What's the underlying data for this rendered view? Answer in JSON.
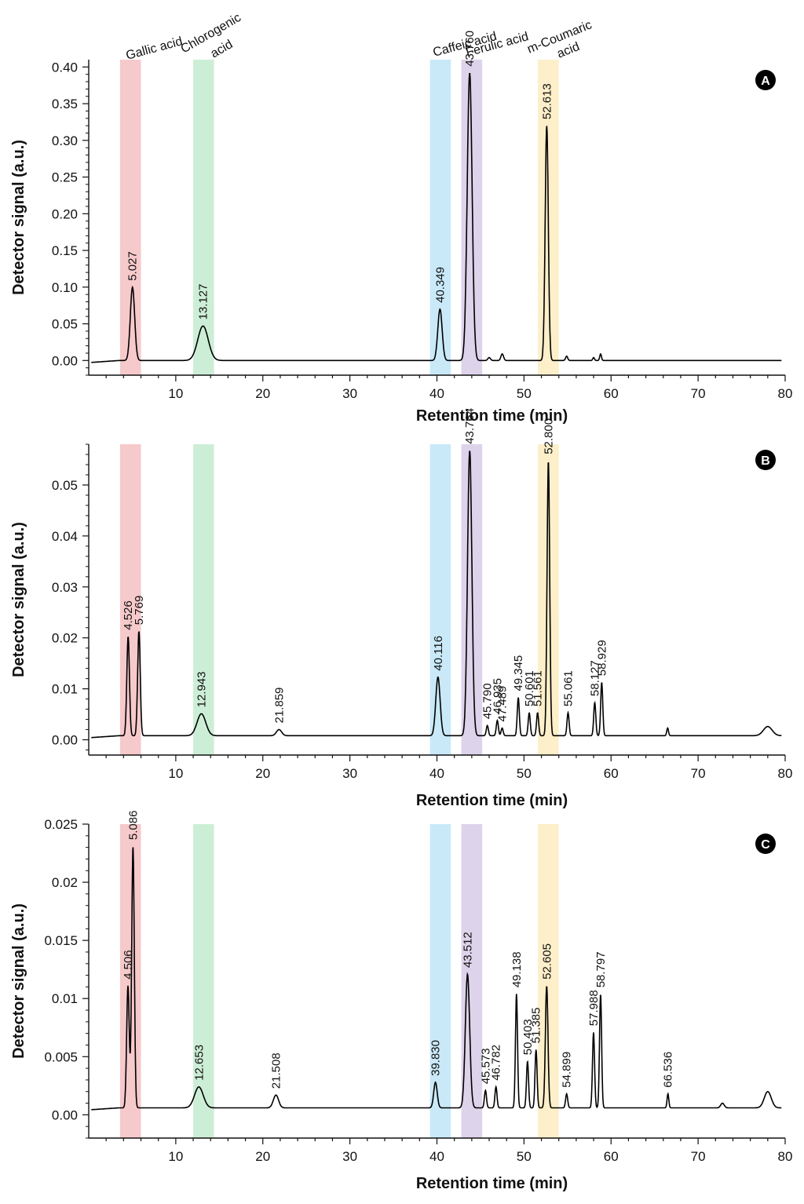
{
  "band_colors": [
    "#f6c9cb",
    "#cdeed6",
    "#c9e9f8",
    "#ddd3ea",
    "#fcefc9"
  ],
  "compounds": [
    {
      "label": "Gallic acid",
      "range": [
        3.6,
        6.0
      ],
      "color": "#f6c9cb"
    },
    {
      "label": "Chlorogenic acid",
      "range": [
        12.0,
        14.4
      ],
      "color": "#cdeed6"
    },
    {
      "label": "Caffeic acid",
      "range": [
        39.2,
        41.6
      ],
      "color": "#c9e9f8"
    },
    {
      "label": "Ferulic acid",
      "range": [
        42.8,
        45.2
      ],
      "color": "#ddd3ea"
    },
    {
      "label": "m-Coumaric acid",
      "range": [
        51.6,
        54.0
      ],
      "color": "#fcefc9"
    }
  ],
  "compound_header": {
    "gallic": "Gallic acid",
    "chlorogenic_1": "Chlorogenic",
    "chlorogenic_2": "acid",
    "caffeic": "Caffeic acid",
    "ferulic": "Ferulic acid",
    "coumaric_1": "m-Coumaric",
    "coumaric_2": "acid"
  },
  "chart_data": [
    {
      "type": "line",
      "panel": "A",
      "xlabel": "Retention time (min)",
      "ylabel": "Detector signal (a.u.)",
      "xlim": [
        0,
        80
      ],
      "ylim": [
        -0.02,
        0.41
      ],
      "xticks": [
        10,
        20,
        30,
        40,
        50,
        60,
        70,
        80
      ],
      "xtick_labels": [
        "10",
        "20",
        "30",
        "40",
        "50",
        "60",
        "70",
        "80"
      ],
      "yticks": [
        0.0,
        0.05,
        0.1,
        0.15,
        0.2,
        0.25,
        0.3,
        0.35,
        0.4
      ],
      "ytick_labels": [
        "0.00",
        "0.05",
        "0.10",
        "0.15",
        "0.20",
        "0.25",
        "0.30",
        "0.35",
        "0.40"
      ],
      "baseline": 0.0,
      "peaks": [
        {
          "rt": 5.027,
          "height": 0.1,
          "width": 0.25,
          "label": "5.027"
        },
        {
          "rt": 13.127,
          "height": 0.047,
          "width": 0.6,
          "label": "13.127"
        },
        {
          "rt": 40.349,
          "height": 0.07,
          "width": 0.25,
          "label": "40.349"
        },
        {
          "rt": 43.76,
          "height": 0.392,
          "width": 0.28,
          "label": "43.760"
        },
        {
          "rt": 46.0,
          "height": 0.004,
          "width": 0.15,
          "label": ""
        },
        {
          "rt": 47.5,
          "height": 0.009,
          "width": 0.15,
          "label": ""
        },
        {
          "rt": 52.613,
          "height": 0.32,
          "width": 0.18,
          "label": "52.613"
        },
        {
          "rt": 54.9,
          "height": 0.006,
          "width": 0.12,
          "label": ""
        },
        {
          "rt": 58.0,
          "height": 0.004,
          "width": 0.1,
          "label": ""
        },
        {
          "rt": 58.8,
          "height": 0.009,
          "width": 0.1,
          "label": ""
        }
      ]
    },
    {
      "type": "line",
      "panel": "B",
      "xlabel": "Retention time (min)",
      "ylabel": "Detector signal (a.u.)",
      "xlim": [
        0,
        80
      ],
      "ylim": [
        -0.003,
        0.058
      ],
      "xticks": [
        10,
        20,
        30,
        40,
        50,
        60,
        70,
        80
      ],
      "xtick_labels": [
        "10",
        "20",
        "30",
        "40",
        "50",
        "60",
        "70",
        "80"
      ],
      "yticks": [
        0.0,
        0.01,
        0.02,
        0.03,
        0.04,
        0.05
      ],
      "ytick_labels": [
        "0.00",
        "0.01",
        "0.02",
        "0.03",
        "0.04",
        "0.05"
      ],
      "baseline": 0.0008,
      "peaks": [
        {
          "rt": 4.526,
          "height": 0.0195,
          "width": 0.15,
          "label": "4.526"
        },
        {
          "rt": 5.769,
          "height": 0.0205,
          "width": 0.15,
          "label": "5.769"
        },
        {
          "rt": 12.943,
          "height": 0.0043,
          "width": 0.5,
          "label": "12.943"
        },
        {
          "rt": 21.859,
          "height": 0.0012,
          "width": 0.3,
          "label": "21.859"
        },
        {
          "rt": 40.116,
          "height": 0.0115,
          "width": 0.25,
          "label": "40.116"
        },
        {
          "rt": 43.764,
          "height": 0.056,
          "width": 0.25,
          "label": "43.764"
        },
        {
          "rt": 45.79,
          "height": 0.002,
          "width": 0.12,
          "label": "45.790"
        },
        {
          "rt": 46.935,
          "height": 0.003,
          "width": 0.12,
          "label": "46.935"
        },
        {
          "rt": 47.489,
          "height": 0.0015,
          "width": 0.12,
          "label": "47.489"
        },
        {
          "rt": 49.345,
          "height": 0.0075,
          "width": 0.12,
          "label": "49.345"
        },
        {
          "rt": 50.601,
          "height": 0.0045,
          "width": 0.12,
          "label": "50.601"
        },
        {
          "rt": 51.561,
          "height": 0.0045,
          "width": 0.12,
          "label": "51.561"
        },
        {
          "rt": 52.8,
          "height": 0.054,
          "width": 0.15,
          "label": "52.800"
        },
        {
          "rt": 55.061,
          "height": 0.0045,
          "width": 0.12,
          "label": "55.061"
        },
        {
          "rt": 58.127,
          "height": 0.0065,
          "width": 0.12,
          "label": "58.127"
        },
        {
          "rt": 58.929,
          "height": 0.0105,
          "width": 0.12,
          "label": "58.929"
        },
        {
          "rt": 66.5,
          "height": 0.0015,
          "width": 0.1,
          "label": ""
        },
        {
          "rt": 78.0,
          "height": 0.0018,
          "width": 0.5,
          "label": ""
        }
      ]
    },
    {
      "type": "line",
      "panel": "C",
      "xlabel": "Retention time (min)",
      "ylabel": "Detector signal (a.u.)",
      "xlim": [
        0,
        80
      ],
      "ylim": [
        -0.002,
        0.025
      ],
      "xticks": [
        10,
        20,
        30,
        40,
        50,
        60,
        70,
        80
      ],
      "xtick_labels": [
        "10",
        "20",
        "30",
        "40",
        "50",
        "60",
        "70",
        "80"
      ],
      "yticks": [
        0.0,
        0.005,
        0.01,
        0.015,
        0.02,
        0.025
      ],
      "ytick_labels": [
        "0.00",
        "0.005",
        "0.01",
        "0.015",
        "0.02",
        "0.025"
      ],
      "baseline": 0.0006,
      "peaks": [
        {
          "rt": 4.506,
          "height": 0.0105,
          "width": 0.15,
          "label": "4.506"
        },
        {
          "rt": 5.086,
          "height": 0.0225,
          "width": 0.15,
          "label": "5.086"
        },
        {
          "rt": 12.653,
          "height": 0.0018,
          "width": 0.5,
          "label": "12.653"
        },
        {
          "rt": 21.508,
          "height": 0.0011,
          "width": 0.3,
          "label": "21.508"
        },
        {
          "rt": 39.83,
          "height": 0.0022,
          "width": 0.2,
          "label": "39.830"
        },
        {
          "rt": 43.512,
          "height": 0.0115,
          "width": 0.25,
          "label": "43.512"
        },
        {
          "rt": 45.573,
          "height": 0.0015,
          "width": 0.12,
          "label": "45.573"
        },
        {
          "rt": 46.782,
          "height": 0.0018,
          "width": 0.12,
          "label": "46.782"
        },
        {
          "rt": 49.138,
          "height": 0.0098,
          "width": 0.12,
          "label": "49.138"
        },
        {
          "rt": 50.403,
          "height": 0.004,
          "width": 0.12,
          "label": "50.403"
        },
        {
          "rt": 51.385,
          "height": 0.005,
          "width": 0.12,
          "label": "51.385"
        },
        {
          "rt": 52.605,
          "height": 0.0105,
          "width": 0.15,
          "label": "52.605"
        },
        {
          "rt": 54.899,
          "height": 0.0012,
          "width": 0.12,
          "label": "54.899"
        },
        {
          "rt": 57.988,
          "height": 0.0065,
          "width": 0.12,
          "label": "57.988"
        },
        {
          "rt": 58.797,
          "height": 0.0098,
          "width": 0.12,
          "label": "58.797"
        },
        {
          "rt": 66.536,
          "height": 0.0012,
          "width": 0.1,
          "label": "66.536"
        },
        {
          "rt": 72.8,
          "height": 0.0004,
          "width": 0.2,
          "label": ""
        },
        {
          "rt": 78.0,
          "height": 0.0014,
          "width": 0.4,
          "label": ""
        }
      ]
    }
  ]
}
